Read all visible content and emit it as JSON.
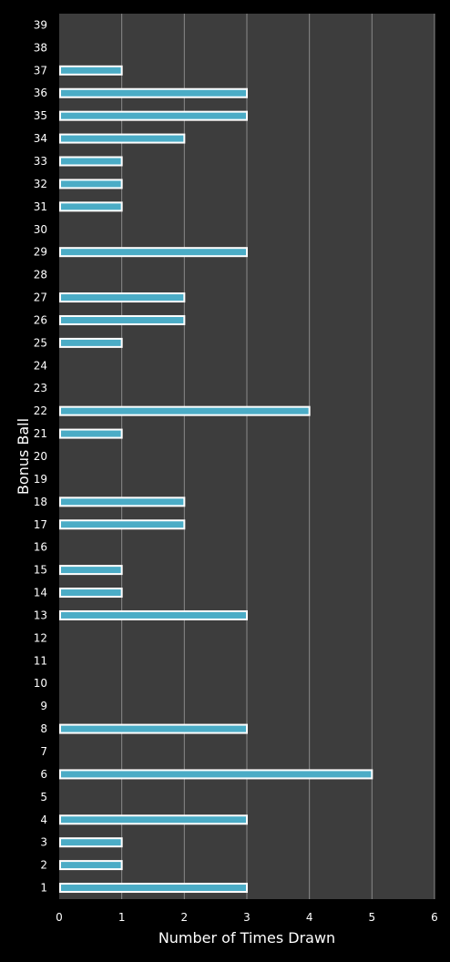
{
  "chart_data": {
    "type": "bar",
    "orientation": "horizontal",
    "xlabel": "Number of Times Drawn",
    "ylabel": "Bonus Ball",
    "xlim": [
      0,
      6
    ],
    "xticks": [
      "0",
      "1",
      "2",
      "3",
      "4",
      "5",
      "6"
    ],
    "grid": true,
    "categories": [
      "1",
      "2",
      "3",
      "4",
      "5",
      "6",
      "7",
      "8",
      "9",
      "10",
      "11",
      "12",
      "13",
      "14",
      "15",
      "16",
      "17",
      "18",
      "19",
      "20",
      "21",
      "22",
      "23",
      "24",
      "25",
      "26",
      "27",
      "28",
      "29",
      "30",
      "31",
      "32",
      "33",
      "34",
      "35",
      "36",
      "37",
      "38",
      "39"
    ],
    "values": [
      3,
      1,
      1,
      3,
      0,
      5,
      0,
      3,
      0,
      0,
      0,
      0,
      3,
      1,
      1,
      0,
      2,
      2,
      0,
      0,
      1,
      4,
      0,
      0,
      1,
      2,
      2,
      0,
      3,
      0,
      1,
      1,
      1,
      2,
      3,
      3,
      1,
      0,
      0
    ]
  },
  "colors": {
    "background": "#000000",
    "plot_area": "#3d3d3d",
    "gridline": "#8a8a8a",
    "bar_fill": "#4bacc6",
    "bar_border": "#ffffff",
    "text": "#ffffff"
  }
}
